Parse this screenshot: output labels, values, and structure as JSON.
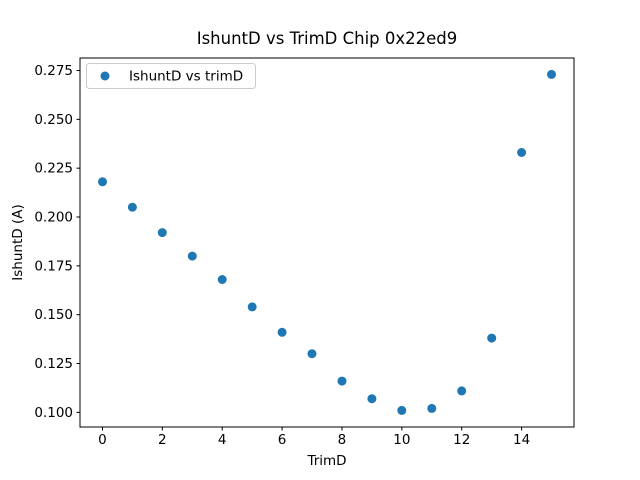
{
  "window": {
    "background": "#ffffff"
  },
  "chart_data": {
    "type": "scatter",
    "title": "IshuntD vs TrimD Chip 0x22ed9",
    "xlabel": "TrimD",
    "ylabel": "IshuntD (A)",
    "legend": {
      "label": "IshuntD vs trimD",
      "position": "upper-left",
      "border_color": "#cccccc",
      "background": "#ffffff"
    },
    "marker_color": "#1f77b4",
    "axis_color": "#000000",
    "grid": false,
    "x": [
      0,
      1,
      2,
      3,
      4,
      5,
      6,
      7,
      8,
      9,
      10,
      11,
      12,
      13,
      14,
      15
    ],
    "y": [
      0.218,
      0.205,
      0.192,
      0.18,
      0.168,
      0.154,
      0.141,
      0.13,
      0.116,
      0.107,
      0.101,
      0.102,
      0.111,
      0.138,
      0.233,
      0.273
    ],
    "xlim": [
      -0.75,
      15.75
    ],
    "ylim": [
      0.0925,
      0.2814
    ],
    "xticks": [
      0,
      2,
      4,
      6,
      8,
      10,
      12,
      14
    ],
    "xtick_labels": [
      "0",
      "2",
      "4",
      "6",
      "8",
      "10",
      "12",
      "14"
    ],
    "yticks": [
      0.1,
      0.125,
      0.15,
      0.175,
      0.2,
      0.225,
      0.25,
      0.275
    ],
    "ytick_labels": [
      "0.100",
      "0.125",
      "0.150",
      "0.175",
      "0.200",
      "0.225",
      "0.250",
      "0.275"
    ]
  }
}
